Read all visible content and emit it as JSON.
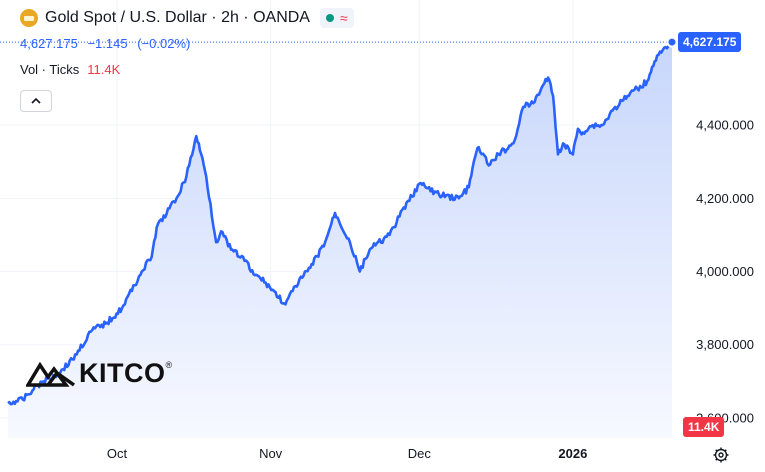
{
  "header": {
    "title": "Gold Spot / U.S. Dollar · 2h · OANDA",
    "icon": "gold-bar-icon"
  },
  "quote": {
    "last": "4,627.175",
    "change": "−1.145",
    "change_pct": "(−0.02%)"
  },
  "volume": {
    "label": "Vol · Ticks",
    "value": "11.4K"
  },
  "badges": {
    "price": "4,627.175",
    "volume": "11.4K"
  },
  "logo": {
    "text": "KITCO",
    "mark": "®"
  },
  "colors": {
    "line": "#2962ff",
    "area_top": "#c7d6fb",
    "area_bottom": "#f7f9ff",
    "volume_up": "#26a69a",
    "volume_down": "#ef5350",
    "price_badge": "#2962ff",
    "volume_badge": "#f23645"
  },
  "chart_data": {
    "type": "area",
    "title": "Gold Spot / U.S. Dollar · 2h · OANDA",
    "x_tick_labels": [
      "Oct",
      "Nov",
      "Dec",
      "2026"
    ],
    "x_tick_dates": [
      "2025-10-01",
      "2025-11-01",
      "2025-12-01",
      "2026-01-01"
    ],
    "x_range": [
      "2025-09-09",
      "2026-01-21"
    ],
    "y_ticks": [
      3600,
      3800,
      4000,
      4200,
      4400
    ],
    "y_tick_labels": [
      "3,600.000",
      "3,800.000",
      "4,000.000",
      "4,200.000",
      "4,400.000"
    ],
    "ylim": [
      3545,
      4660
    ],
    "grid": true,
    "series": [
      {
        "values_t": [
          "2025-09-09",
          "2025-09-12",
          "2025-09-15",
          "2025-09-19",
          "2025-09-22",
          "2025-09-26",
          "2025-09-29",
          "2025-10-02",
          "2025-10-06",
          "2025-10-08",
          "2025-10-09",
          "2025-10-13",
          "2025-10-15",
          "2025-10-17",
          "2025-10-18",
          "2025-10-19",
          "2025-10-21",
          "2025-10-22",
          "2025-10-24",
          "2025-10-27",
          "2025-10-28",
          "2025-10-31",
          "2025-11-04",
          "2025-11-06",
          "2025-11-09",
          "2025-11-12",
          "2025-11-13",
          "2025-11-14",
          "2025-11-17",
          "2025-11-19",
          "2025-11-21",
          "2025-11-25",
          "2025-11-27",
          "2025-12-01",
          "2025-12-05",
          "2025-12-09",
          "2025-12-11",
          "2025-12-12",
          "2025-12-13",
          "2025-12-15",
          "2025-12-17",
          "2025-12-20",
          "2025-12-22",
          "2025-12-24",
          "2025-12-26",
          "2025-12-27",
          "2025-12-28",
          "2025-12-29",
          "2025-12-30",
          "2026-01-01",
          "2026-01-02",
          "2026-01-03",
          "2026-01-05",
          "2026-01-07",
          "2026-01-09",
          "2026-01-12",
          "2026-01-14",
          "2026-01-16",
          "2026-01-17",
          "2026-01-18",
          "2026-01-20",
          "2026-01-21"
        ],
        "values_y": [
          3640,
          3650,
          3690,
          3720,
          3760,
          3840,
          3860,
          3900,
          4000,
          4040,
          4120,
          4200,
          4260,
          4370,
          4320,
          4260,
          4080,
          4110,
          4060,
          4030,
          4000,
          3970,
          3910,
          3960,
          4010,
          4080,
          4120,
          4160,
          4080,
          4000,
          4060,
          4100,
          4150,
          4240,
          4210,
          4200,
          4230,
          4300,
          4340,
          4290,
          4320,
          4350,
          4450,
          4460,
          4510,
          4530,
          4480,
          4320,
          4350,
          4320,
          4390,
          4380,
          4400,
          4400,
          4440,
          4480,
          4500,
          4520,
          4560,
          4590,
          4610,
          4627
        ]
      }
    ],
    "volume_ticks_max": 70
  }
}
